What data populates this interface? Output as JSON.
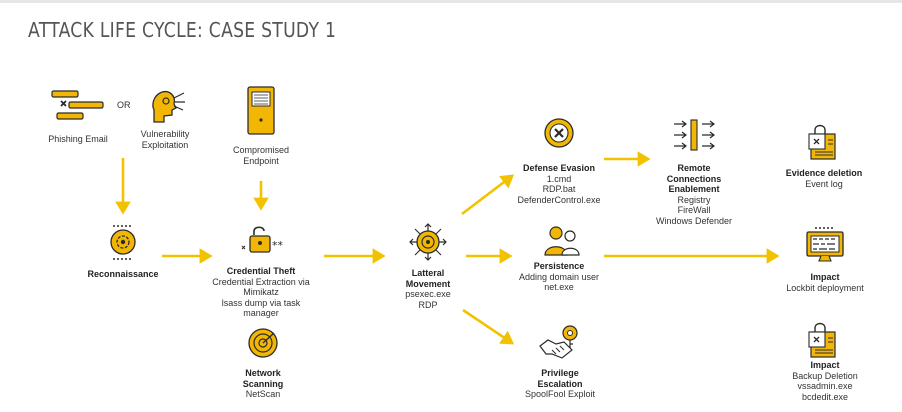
{
  "title": "ATTACK LIFE CYCLE: CASE STUDY 1",
  "or_label": "OR",
  "colors": {
    "accent": "#f2b705",
    "dark": "#2b2b2b",
    "arrow": "#f2c200"
  },
  "nodes": {
    "phishing": {
      "label": "Phishing Email",
      "icon": "phishing-email-icon"
    },
    "vuln": {
      "line1": "Vulnerability",
      "line2": "Exploitation",
      "icon": "vulnerability-head-icon"
    },
    "endpoint": {
      "line1": "Compromised",
      "line2": "Endpoint",
      "icon": "server-tower-icon"
    },
    "recon": {
      "title": "Reconnaissance",
      "icon": "gear-clock-icon"
    },
    "cred": {
      "title": "Credential Theft",
      "lines": [
        "Credential Extraction via",
        "Mimikatz",
        "lsass dump via task",
        "manager"
      ],
      "icon": "padlock-password-icon"
    },
    "lateral": {
      "title1": "Latteral",
      "title2": "Movement",
      "lines": [
        "psexec.exe",
        "RDP"
      ],
      "icon": "target-arrows-icon"
    },
    "defense": {
      "title": "Defense Evasion",
      "lines": [
        "1.cmd",
        "RDP.bat",
        "DefenderControl.exe"
      ],
      "icon": "x-circle-icon"
    },
    "remote": {
      "title1": "Remote",
      "title2": "Connections",
      "title3": "Enablement",
      "lines": [
        "Registry",
        "FireWall",
        "Windows Defender"
      ],
      "icon": "arrows-flow-icon"
    },
    "persistence": {
      "title": "Persistence",
      "lines": [
        "Adding domain user",
        "net.exe"
      ],
      "icon": "users-icon"
    },
    "privilege": {
      "title1": "Privilege",
      "title2": "Escalation",
      "lines": [
        "SpoolFool Exploit"
      ],
      "icon": "handshake-key-icon"
    },
    "evidence": {
      "title": "Evidence deletion",
      "lines": [
        "Event log"
      ],
      "icon": "document-lock-icon"
    },
    "impact1": {
      "title": "Impact",
      "lines": [
        "Lockbit deployment"
      ],
      "icon": "monitor-lock-icon"
    },
    "impact2": {
      "title": "Impact",
      "lines": [
        "Backup Deletion",
        "vssadmin.exe",
        "bcdedit.exe"
      ],
      "icon": "document-lock-icon"
    },
    "netscan": {
      "title1": "Network",
      "title2": "Scanning",
      "lines": [
        "NetScan"
      ],
      "icon": "radar-icon"
    }
  }
}
